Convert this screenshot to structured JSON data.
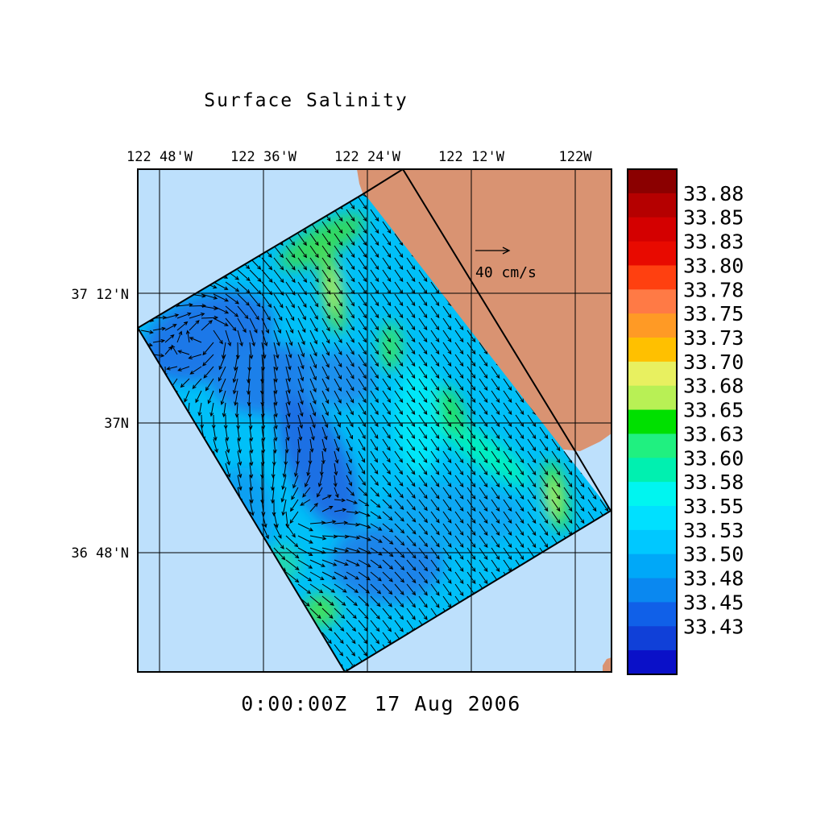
{
  "title": "Surface Salinity",
  "timestamp": "0:00:00Z  17 Aug 2006",
  "longitude_labels": [
    "122 48'W",
    "122 36'W",
    "122 24'W",
    "122 12'W",
    "122W"
  ],
  "latitude_labels": [
    "37 12'N",
    "37N",
    "36 48'N"
  ],
  "reference_vector": {
    "label": "40 cm/s",
    "speed_cm_s": 40
  },
  "colorbar": {
    "labels": [
      "33.88",
      "33.85",
      "33.83",
      "33.80",
      "33.78",
      "33.75",
      "33.73",
      "33.70",
      "33.68",
      "33.65",
      "33.63",
      "33.60",
      "33.58",
      "33.55",
      "33.53",
      "33.50",
      "33.48",
      "33.45",
      "33.43"
    ],
    "colors": [
      "#8b0000",
      "#b50000",
      "#d40000",
      "#e80a00",
      "#ff4010",
      "#ff7a45",
      "#ff9a25",
      "#ffc000",
      "#e8f060",
      "#b8f055",
      "#00e000",
      "#20f080",
      "#00f0b0",
      "#00f5f0",
      "#00e0ff",
      "#00c8ff",
      "#00a8f8",
      "#0a88f0",
      "#1060e8",
      "#1040d8",
      "#0a10c8"
    ]
  },
  "colors": {
    "ocean": "#bde0fc",
    "land": "#d99372",
    "grid": "#000000"
  }
}
